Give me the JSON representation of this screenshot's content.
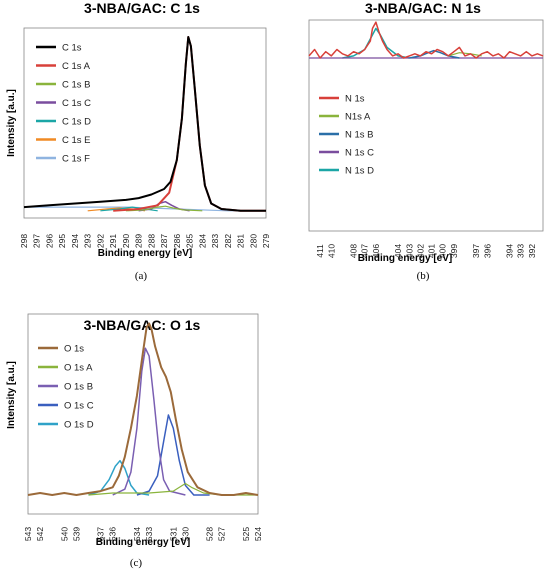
{
  "chart_data": [
    {
      "id": "c1s",
      "type": "line",
      "title": "3-NBA/GAC: C 1s",
      "xlabel": "Binding energy [eV]",
      "ylabel": "Intensity [a.u.]",
      "caption": "(a)",
      "x_reversed": true,
      "xlim": [
        279,
        298
      ],
      "ylim": [
        0,
        1.05
      ],
      "x_ticks": [
        298,
        297,
        296,
        295,
        294,
        293,
        292,
        291,
        290,
        289,
        288,
        287,
        286,
        285,
        284,
        283,
        282,
        281,
        280,
        279
      ],
      "legend_position": "top-left",
      "series": [
        {
          "name": "C 1s",
          "color": "#000000",
          "width": 2,
          "data": [
            [
              298,
              0.06
            ],
            [
              296,
              0.07
            ],
            [
              294,
              0.08
            ],
            [
              292,
              0.09
            ],
            [
              290,
              0.1
            ],
            [
              289,
              0.11
            ],
            [
              288,
              0.13
            ],
            [
              287,
              0.16
            ],
            [
              286.5,
              0.2
            ],
            [
              286,
              0.32
            ],
            [
              285.6,
              0.55
            ],
            [
              285.3,
              0.85
            ],
            [
              285.1,
              1.0
            ],
            [
              284.9,
              0.95
            ],
            [
              284.6,
              0.72
            ],
            [
              284.2,
              0.4
            ],
            [
              283.8,
              0.18
            ],
            [
              283.3,
              0.08
            ],
            [
              282.5,
              0.05
            ],
            [
              281,
              0.04
            ],
            [
              279,
              0.04
            ]
          ]
        },
        {
          "name": "C 1s A",
          "color": "#d8403a",
          "width": 2,
          "data": [
            [
              291,
              0.04
            ],
            [
              289,
              0.05
            ],
            [
              287.5,
              0.07
            ],
            [
              286.6,
              0.14
            ],
            [
              286,
              0.32
            ],
            [
              285.6,
              0.55
            ],
            [
              285.3,
              0.85
            ],
            [
              285.1,
              1.0
            ],
            [
              284.9,
              0.95
            ],
            [
              284.6,
              0.72
            ],
            [
              284.2,
              0.4
            ],
            [
              283.8,
              0.18
            ],
            [
              283.3,
              0.08
            ],
            [
              282.5,
              0.05
            ],
            [
              281,
              0.04
            ],
            [
              279,
              0.04
            ]
          ]
        },
        {
          "name": "C 1s B",
          "color": "#8ab43c",
          "width": 1.2,
          "data": [
            [
              290,
              0.04
            ],
            [
              288.5,
              0.045
            ],
            [
              287.5,
              0.06
            ],
            [
              286.9,
              0.065
            ],
            [
              286.3,
              0.055
            ],
            [
              285.5,
              0.045
            ],
            [
              284,
              0.04
            ]
          ]
        },
        {
          "name": "C 1s C",
          "color": "#7a4d9e",
          "width": 1.5,
          "data": [
            [
              289,
              0.04
            ],
            [
              288,
              0.05
            ],
            [
              287.4,
              0.08
            ],
            [
              286.9,
              0.09
            ],
            [
              286.4,
              0.07
            ],
            [
              285.8,
              0.05
            ],
            [
              285,
              0.04
            ]
          ]
        },
        {
          "name": "C 1s D",
          "color": "#1ba6a6",
          "width": 1.2,
          "data": [
            [
              292,
              0.04
            ],
            [
              290.5,
              0.05
            ],
            [
              289.5,
              0.06
            ],
            [
              288.5,
              0.05
            ],
            [
              287.5,
              0.04
            ]
          ]
        },
        {
          "name": "C 1s E",
          "color": "#f08a24",
          "width": 1.2,
          "data": [
            [
              293,
              0.04
            ],
            [
              291.5,
              0.05
            ],
            [
              290.5,
              0.055
            ],
            [
              289.5,
              0.05
            ],
            [
              288.5,
              0.04
            ]
          ]
        },
        {
          "name": "C 1s F",
          "color": "#8fb4e0",
          "width": 1.2,
          "data": [
            [
              298,
              0.06
            ],
            [
              294,
              0.06
            ],
            [
              290,
              0.06
            ],
            [
              286,
              0.05
            ],
            [
              282,
              0.04
            ],
            [
              279,
              0.04
            ]
          ]
        }
      ]
    },
    {
      "id": "n1s",
      "type": "line",
      "title": "3-NBA/GAC: N 1s",
      "xlabel": "Binding energy [eV]",
      "ylabel": "",
      "caption": "(b)",
      "x_reversed": true,
      "xlim": [
        391,
        412
      ],
      "ylim": [
        0,
        1
      ],
      "x_ticks": [
        411,
        410,
        408,
        407,
        406,
        404,
        403,
        402,
        401,
        400,
        399,
        397,
        396,
        394,
        393,
        392
      ],
      "legend_position": "lower-left",
      "series": [
        {
          "name": "N 1s",
          "color": "#d8403a",
          "width": 1.5,
          "data": [
            [
              412,
              0.83
            ],
            [
              411.5,
              0.86
            ],
            [
              411,
              0.82
            ],
            [
              410.5,
              0.85
            ],
            [
              410,
              0.83
            ],
            [
              409.5,
              0.86
            ],
            [
              409,
              0.84
            ],
            [
              408.5,
              0.83
            ],
            [
              408,
              0.85
            ],
            [
              407.5,
              0.84
            ],
            [
              407,
              0.86
            ],
            [
              406.5,
              0.9
            ],
            [
              406.3,
              0.96
            ],
            [
              406,
              0.99
            ],
            [
              405.7,
              0.94
            ],
            [
              405.4,
              0.9
            ],
            [
              405,
              0.86
            ],
            [
              404.5,
              0.83
            ],
            [
              404,
              0.84
            ],
            [
              403.5,
              0.82
            ],
            [
              403,
              0.83
            ],
            [
              402.5,
              0.84
            ],
            [
              402,
              0.83
            ],
            [
              401.5,
              0.85
            ],
            [
              401,
              0.84
            ],
            [
              400.5,
              0.86
            ],
            [
              400,
              0.85
            ],
            [
              399.5,
              0.83
            ],
            [
              399,
              0.85
            ],
            [
              398.5,
              0.87
            ],
            [
              398,
              0.83
            ],
            [
              397.5,
              0.84
            ],
            [
              397,
              0.82
            ],
            [
              396.5,
              0.84
            ],
            [
              396,
              0.85
            ],
            [
              395.5,
              0.83
            ],
            [
              395,
              0.84
            ],
            [
              394.5,
              0.82
            ],
            [
              394,
              0.85
            ],
            [
              393.5,
              0.84
            ],
            [
              393,
              0.83
            ],
            [
              392.5,
              0.85
            ],
            [
              392,
              0.83
            ],
            [
              391.5,
              0.84
            ],
            [
              391,
              0.83
            ]
          ]
        },
        {
          "name": "N1s A",
          "color": "#8ab43c",
          "width": 1.2,
          "data": [
            [
              399.5,
              0.83
            ],
            [
              398.5,
              0.845
            ],
            [
              397.5,
              0.84
            ],
            [
              396.5,
              0.83
            ]
          ]
        },
        {
          "name": "N 1s B",
          "color": "#2a6fa8",
          "width": 1.5,
          "data": [
            [
              403,
              0.82
            ],
            [
              402,
              0.83
            ],
            [
              401.3,
              0.845
            ],
            [
              400.8,
              0.855
            ],
            [
              400.2,
              0.845
            ],
            [
              399.5,
              0.83
            ],
            [
              398.5,
              0.82
            ]
          ]
        },
        {
          "name": "N 1s C",
          "color": "#7a4d9e",
          "width": 1.2,
          "data": [
            [
              412,
              0.82
            ],
            [
              408,
              0.82
            ],
            [
              404,
              0.82
            ],
            [
              400,
              0.82
            ],
            [
              396,
              0.82
            ],
            [
              392,
              0.82
            ],
            [
              391,
              0.82
            ]
          ]
        },
        {
          "name": "N 1s D",
          "color": "#1ba6a6",
          "width": 1.5,
          "data": [
            [
              409,
              0.82
            ],
            [
              408,
              0.83
            ],
            [
              407,
              0.86
            ],
            [
              406.5,
              0.91
            ],
            [
              406,
              0.96
            ],
            [
              405.6,
              0.93
            ],
            [
              405,
              0.87
            ],
            [
              404,
              0.83
            ],
            [
              403,
              0.82
            ]
          ]
        }
      ]
    },
    {
      "id": "o1s",
      "type": "line",
      "title": "3-NBA/GAC: O 1s",
      "xlabel": "Binding energy [eV]",
      "ylabel": "Intensity [a.u.]",
      "caption": "(c)",
      "x_reversed": true,
      "xlim": [
        524,
        543
      ],
      "ylim": [
        0,
        1.05
      ],
      "x_ticks": [
        543,
        542,
        540,
        539,
        537,
        536,
        534,
        533,
        531,
        530,
        528,
        527,
        525,
        524
      ],
      "legend_position": "top-left",
      "series": [
        {
          "name": "O 1s",
          "color": "#9b6a3a",
          "width": 2,
          "data": [
            [
              543,
              0.1
            ],
            [
              542,
              0.11
            ],
            [
              541,
              0.1
            ],
            [
              540,
              0.11
            ],
            [
              539,
              0.1
            ],
            [
              538,
              0.11
            ],
            [
              537,
              0.12
            ],
            [
              536,
              0.14
            ],
            [
              535.5,
              0.2
            ],
            [
              535,
              0.3
            ],
            [
              534.5,
              0.45
            ],
            [
              534,
              0.62
            ],
            [
              533.5,
              0.85
            ],
            [
              533.2,
              0.98
            ],
            [
              533,
              1.0
            ],
            [
              532.8,
              0.97
            ],
            [
              532.5,
              0.88
            ],
            [
              532,
              0.77
            ],
            [
              531.6,
              0.72
            ],
            [
              531.2,
              0.64
            ],
            [
              530.8,
              0.5
            ],
            [
              530.3,
              0.34
            ],
            [
              529.8,
              0.22
            ],
            [
              529,
              0.14
            ],
            [
              528,
              0.11
            ],
            [
              527,
              0.1
            ],
            [
              526,
              0.1
            ],
            [
              525,
              0.11
            ],
            [
              524,
              0.1
            ]
          ]
        },
        {
          "name": "O 1s A",
          "color": "#8ab43c",
          "width": 1.2,
          "data": [
            [
              538,
              0.1
            ],
            [
              536,
              0.11
            ],
            [
              533,
              0.11
            ],
            [
              531,
              0.12
            ],
            [
              530,
              0.16
            ],
            [
              529.5,
              0.14
            ],
            [
              528.5,
              0.11
            ],
            [
              527,
              0.1
            ],
            [
              524,
              0.1
            ]
          ]
        },
        {
          "name": "O 1s B",
          "color": "#7a5fb2",
          "width": 1.5,
          "data": [
            [
              536,
              0.1
            ],
            [
              535,
              0.13
            ],
            [
              534.5,
              0.22
            ],
            [
              534,
              0.45
            ],
            [
              533.6,
              0.75
            ],
            [
              533.3,
              0.87
            ],
            [
              533,
              0.83
            ],
            [
              532.6,
              0.6
            ],
            [
              532.2,
              0.35
            ],
            [
              531.8,
              0.18
            ],
            [
              531.3,
              0.12
            ],
            [
              530,
              0.1
            ]
          ]
        },
        {
          "name": "O 1s C",
          "color": "#3a5fbf",
          "width": 1.5,
          "data": [
            [
              534,
              0.1
            ],
            [
              533,
              0.12
            ],
            [
              532.3,
              0.2
            ],
            [
              531.8,
              0.38
            ],
            [
              531.4,
              0.52
            ],
            [
              531,
              0.45
            ],
            [
              530.5,
              0.28
            ],
            [
              530,
              0.15
            ],
            [
              529.3,
              0.1
            ],
            [
              528,
              0.1
            ]
          ]
        },
        {
          "name": "O 1s D",
          "color": "#2fa2c8",
          "width": 1.5,
          "data": [
            [
              538,
              0.1
            ],
            [
              537,
              0.12
            ],
            [
              536.3,
              0.18
            ],
            [
              535.8,
              0.25
            ],
            [
              535.4,
              0.28
            ],
            [
              535,
              0.24
            ],
            [
              534.5,
              0.15
            ],
            [
              534,
              0.11
            ],
            [
              533,
              0.1
            ]
          ]
        }
      ]
    }
  ]
}
